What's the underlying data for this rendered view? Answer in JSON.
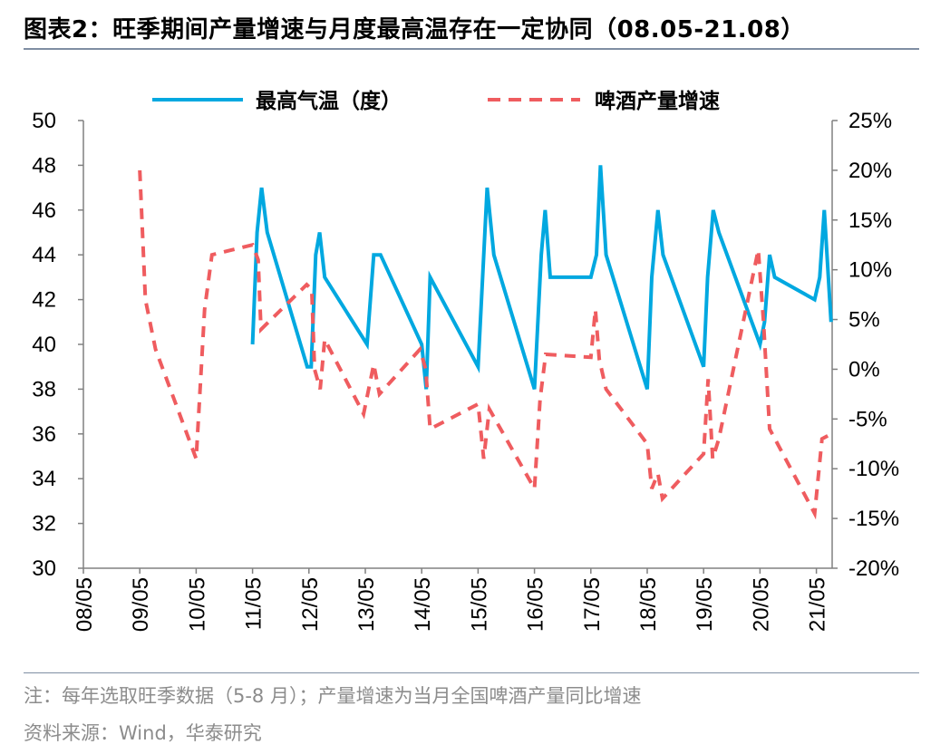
{
  "header": {
    "title": "图表2：旺季期间产量增速与月度最高温存在一定协同（08.05-21.08）"
  },
  "footer": {
    "note": "注：每年选取旺季数据（5-8 月）；产量增速为当月全国啤酒产量同比增速",
    "source": "资料来源：Wind，华泰研究"
  },
  "chart_data": {
    "type": "line",
    "title": "旺季期间产量增速与月度最高温存在一定协同（08.05-21.08）",
    "x_tick_labels": [
      "08/05",
      "09/05",
      "10/05",
      "11/05",
      "12/05",
      "13/05",
      "14/05",
      "15/05",
      "16/05",
      "17/05",
      "18/05",
      "19/05",
      "20/05",
      "21/05"
    ],
    "left_axis": {
      "ylim": [
        30,
        50
      ],
      "step": 2,
      "ticks": [
        "30",
        "32",
        "34",
        "36",
        "38",
        "40",
        "42",
        "44",
        "46",
        "48",
        "50"
      ]
    },
    "right_axis": {
      "ylim": [
        -20,
        25
      ],
      "step": 5,
      "ticks": [
        "-20%",
        "-15%",
        "-10%",
        "-5%",
        "0%",
        "5%",
        "10%",
        "15%",
        "20%",
        "25%"
      ]
    },
    "legend_position": "top",
    "series": [
      {
        "name": "最高气温（度）",
        "axis": "left",
        "color": "#00a8e0",
        "style": "solid",
        "points": [
          [
            3.0,
            40
          ],
          [
            3.08,
            45
          ],
          [
            3.16,
            47
          ],
          [
            3.26,
            45
          ],
          [
            3.97,
            39
          ],
          [
            4.04,
            39
          ],
          [
            4.12,
            44
          ],
          [
            4.19,
            45
          ],
          [
            4.28,
            43
          ],
          [
            5.03,
            40
          ],
          [
            5.15,
            44
          ],
          [
            5.27,
            44
          ],
          [
            6.0,
            40
          ],
          [
            6.08,
            38
          ],
          [
            6.15,
            43
          ],
          [
            7.0,
            39
          ],
          [
            7.16,
            47
          ],
          [
            7.28,
            44
          ],
          [
            8.0,
            38
          ],
          [
            8.12,
            44
          ],
          [
            8.19,
            46
          ],
          [
            8.28,
            43
          ],
          [
            9.0,
            43
          ],
          [
            9.1,
            44
          ],
          [
            9.17,
            48
          ],
          [
            9.27,
            44
          ],
          [
            10.0,
            38
          ],
          [
            10.08,
            43
          ],
          [
            10.19,
            46
          ],
          [
            10.28,
            44
          ],
          [
            11.0,
            39
          ],
          [
            11.07,
            43
          ],
          [
            11.17,
            46
          ],
          [
            11.27,
            45
          ],
          [
            12.0,
            40
          ],
          [
            12.08,
            41
          ],
          [
            12.17,
            44
          ],
          [
            12.26,
            43
          ],
          [
            12.97,
            42
          ],
          [
            13.06,
            43
          ],
          [
            13.14,
            46
          ],
          [
            13.26,
            41
          ]
        ]
      },
      {
        "name": "啤酒产量增速",
        "axis": "right",
        "color": "#ef5c5f",
        "style": "dashed",
        "points": [
          [
            1.0,
            20.0
          ],
          [
            1.1,
            7.0
          ],
          [
            1.28,
            2.0
          ],
          [
            2.0,
            -9.0
          ],
          [
            2.15,
            6.0
          ],
          [
            2.28,
            11.5
          ],
          [
            3.0,
            12.5
          ],
          [
            3.1,
            11.0
          ],
          [
            3.15,
            4.0
          ],
          [
            3.96,
            8.5
          ],
          [
            4.05,
            8.0
          ],
          [
            4.1,
            0.0
          ],
          [
            4.2,
            -2.0
          ],
          [
            4.28,
            3.0
          ],
          [
            4.97,
            -4.5
          ],
          [
            5.15,
            0.5
          ],
          [
            5.25,
            -2.5
          ],
          [
            5.97,
            2.0
          ],
          [
            6.07,
            0.0
          ],
          [
            6.15,
            -6.0
          ],
          [
            7.0,
            -3.5
          ],
          [
            7.1,
            -9.0
          ],
          [
            7.2,
            -4.0
          ],
          [
            8.0,
            -12.0
          ],
          [
            8.1,
            -3.0
          ],
          [
            8.2,
            1.5
          ],
          [
            9.0,
            1.2
          ],
          [
            9.08,
            6.0
          ],
          [
            9.15,
            1.0
          ],
          [
            9.27,
            -2.0
          ],
          [
            10.0,
            -7.5
          ],
          [
            10.08,
            -12.0
          ],
          [
            10.19,
            -10.5
          ],
          [
            10.27,
            -13.0
          ],
          [
            11.0,
            -8.5
          ],
          [
            11.08,
            -1.0
          ],
          [
            11.16,
            -9.0
          ],
          [
            11.27,
            -7.0
          ],
          [
            11.97,
            12.0
          ],
          [
            12.06,
            5.0
          ],
          [
            12.17,
            -6.0
          ],
          [
            12.97,
            -14.5
          ],
          [
            13.1,
            -7.0
          ],
          [
            13.26,
            -6.5
          ]
        ]
      }
    ]
  }
}
